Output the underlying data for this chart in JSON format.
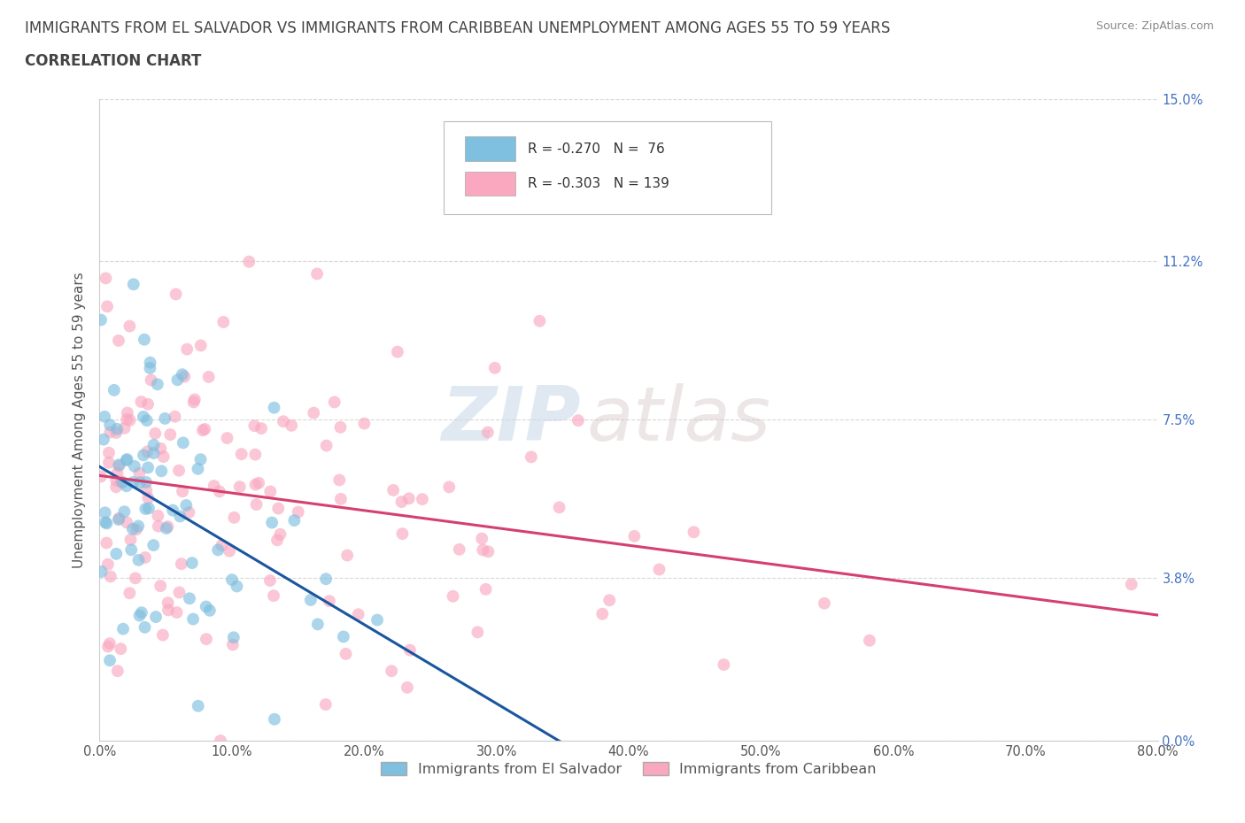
{
  "title_line1": "IMMIGRANTS FROM EL SALVADOR VS IMMIGRANTS FROM CARIBBEAN UNEMPLOYMENT AMONG AGES 55 TO 59 YEARS",
  "title_line2": "CORRELATION CHART",
  "source_text": "Source: ZipAtlas.com",
  "ylabel": "Unemployment Among Ages 55 to 59 years",
  "xmin": 0.0,
  "xmax": 0.8,
  "ymin": 0.0,
  "ymax": 0.15,
  "yticks": [
    0.0,
    0.038,
    0.075,
    0.112,
    0.15
  ],
  "ytick_labels": [
    "0.0%",
    "3.8%",
    "7.5%",
    "11.2%",
    "15.0%"
  ],
  "xtick_labels": [
    "0.0%",
    "10.0%",
    "20.0%",
    "30.0%",
    "40.0%",
    "50.0%",
    "60.0%",
    "70.0%",
    "80.0%"
  ],
  "xticks": [
    0.0,
    0.1,
    0.2,
    0.3,
    0.4,
    0.5,
    0.6,
    0.7,
    0.8
  ],
  "legend_labels": [
    "Immigrants from El Salvador",
    "Immigrants from Caribbean"
  ],
  "r_salvador": -0.27,
  "n_salvador": 76,
  "r_caribbean": -0.303,
  "n_caribbean": 139,
  "blue_scatter": "#7fbfdf",
  "pink_scatter": "#f9a8c0",
  "blue_line": "#1a56a0",
  "pink_line": "#d44070",
  "dashed_line": "#7fbfdf",
  "watermark_zip": "ZIP",
  "watermark_atlas": "atlas",
  "background_color": "#ffffff",
  "grid_color": "#d8d8d8",
  "title_color": "#444444",
  "axis_label_color": "#555555",
  "right_label_color": "#4472c4",
  "source_color": "#888888",
  "legend_box_edge": "#bbbbbb",
  "legend_r_color": "#333333",
  "legend_n_color": "#2070b0",
  "bottom_legend_color": "#555555"
}
